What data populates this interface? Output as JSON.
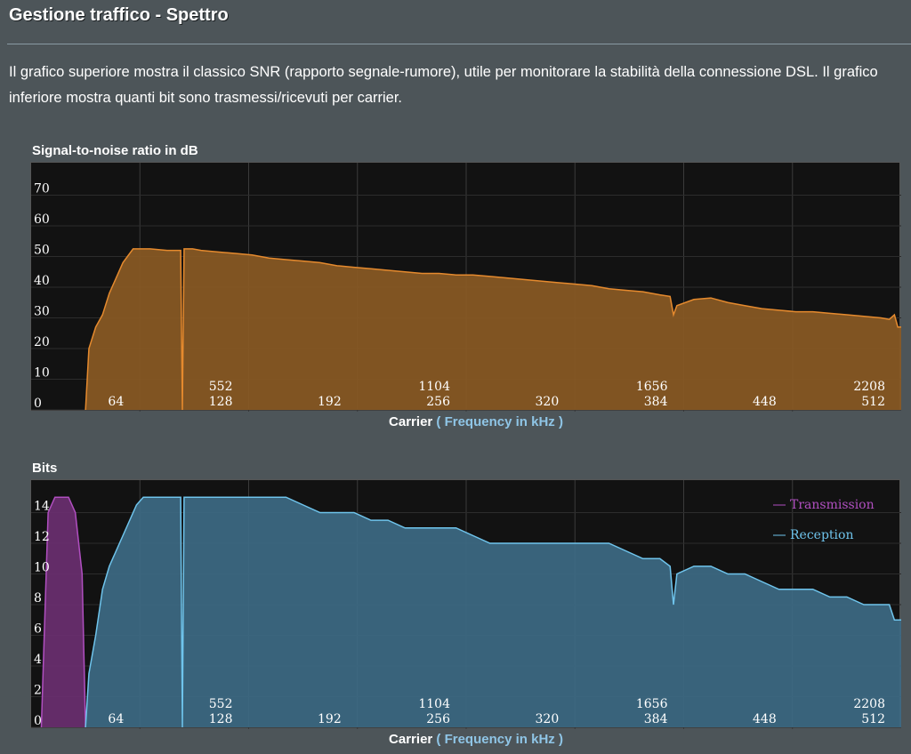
{
  "page": {
    "title": "Gestione traffico - Spettro",
    "description": "Il grafico superiore mostra il classico SNR (rapporto segnale-rumore), utile per monitorare la stabilità della connessione DSL. Il grafico inferiore mostra quanti bit sono trasmessi/ricevuti per carrier."
  },
  "chart_data": [
    {
      "type": "area",
      "title": "Signal-to-noise ratio in dB",
      "xlabel": "Carrier",
      "xlabel_extra": "( Frequency in kHz )",
      "ylabel": "",
      "xlim": [
        0,
        512
      ],
      "ylim": [
        0,
        80
      ],
      "y_ticks": [
        "0",
        "10",
        "20",
        "30",
        "40",
        "50",
        "60",
        "70"
      ],
      "x_ticks_carrier": [
        "64",
        "128",
        "192",
        "256",
        "320",
        "384",
        "448",
        "512"
      ],
      "x_ticks_khz": [
        "552",
        "1104",
        "1656",
        "2208"
      ],
      "grid": true,
      "colors": {
        "fill": "#8a5a24",
        "line": "#e58a2e"
      },
      "series": [
        {
          "x": [
            32,
            34,
            38,
            42,
            46,
            50,
            54,
            60,
            70,
            80,
            88,
            89,
            90,
            91,
            95,
            100,
            110,
            120,
            130,
            140,
            150,
            160,
            170,
            180,
            190,
            200,
            210,
            220,
            230,
            240,
            250,
            260,
            270,
            280,
            290,
            300,
            310,
            320,
            330,
            340,
            350,
            360,
            370,
            376,
            378,
            380,
            390,
            400,
            410,
            420,
            430,
            440,
            450,
            460,
            470,
            480,
            490,
            500,
            505,
            508,
            510,
            512
          ],
          "values": [
            0,
            20,
            27,
            31,
            38,
            43,
            48,
            52.5,
            52.5,
            52,
            52,
            0,
            52.5,
            52.5,
            52.5,
            52,
            51.5,
            51,
            50.5,
            49.5,
            49,
            48.5,
            48,
            47,
            46.5,
            46,
            45.5,
            45,
            44.5,
            44.5,
            44,
            44,
            43.5,
            43,
            42.5,
            42,
            41.5,
            41,
            40.5,
            39.5,
            39,
            38.5,
            37.5,
            37,
            31,
            34,
            36,
            36.5,
            35,
            34,
            33,
            32.5,
            32,
            32,
            31.5,
            31,
            30.5,
            30,
            29.5,
            31,
            27,
            27
          ]
        }
      ]
    },
    {
      "type": "area",
      "title": "Bits",
      "xlabel": "Carrier",
      "xlabel_extra": "( Frequency in kHz )",
      "ylabel": "",
      "xlim": [
        0,
        512
      ],
      "ylim": [
        0,
        16
      ],
      "y_ticks": [
        "0",
        "2",
        "4",
        "6",
        "8",
        "10",
        "12",
        "14"
      ],
      "x_ticks_carrier": [
        "64",
        "128",
        "192",
        "256",
        "320",
        "384",
        "448",
        "512"
      ],
      "x_ticks_khz": [
        "552",
        "1104",
        "1656",
        "2208"
      ],
      "grid": true,
      "legend_position": "top-right",
      "series": [
        {
          "name": "Transmission",
          "color": "#b04fc0",
          "fill": "#6a2f70",
          "x": [
            6,
            10,
            14,
            22,
            26,
            30,
            32
          ],
          "values": [
            0,
            14,
            15,
            15,
            14,
            10,
            0
          ]
        },
        {
          "name": "Reception",
          "color": "#6fc4ec",
          "fill": "#3d6a84",
          "x": [
            32,
            34,
            38,
            42,
            46,
            50,
            54,
            58,
            62,
            66,
            70,
            80,
            88,
            89,
            90,
            91,
            100,
            110,
            120,
            130,
            140,
            150,
            160,
            170,
            180,
            190,
            200,
            210,
            220,
            230,
            240,
            250,
            260,
            270,
            280,
            290,
            300,
            310,
            320,
            330,
            340,
            350,
            360,
            370,
            376,
            378,
            380,
            390,
            400,
            410,
            420,
            430,
            440,
            450,
            460,
            470,
            480,
            490,
            500,
            505,
            508,
            510,
            512
          ],
          "values": [
            0,
            3.5,
            6,
            9,
            10.5,
            11.5,
            12.5,
            13.5,
            14.5,
            15,
            15,
            15,
            15,
            0,
            15,
            15,
            15,
            15,
            15,
            15,
            15,
            15,
            14.5,
            14,
            14,
            14,
            13.5,
            13.5,
            13,
            13,
            13,
            13,
            12.5,
            12,
            12,
            12,
            12,
            12,
            12,
            12,
            12,
            11.5,
            11,
            11,
            10.5,
            8,
            10,
            10.5,
            10.5,
            10,
            10,
            9.5,
            9,
            9,
            9,
            8.5,
            8.5,
            8,
            8,
            8,
            7,
            7,
            7
          ]
        }
      ]
    }
  ]
}
